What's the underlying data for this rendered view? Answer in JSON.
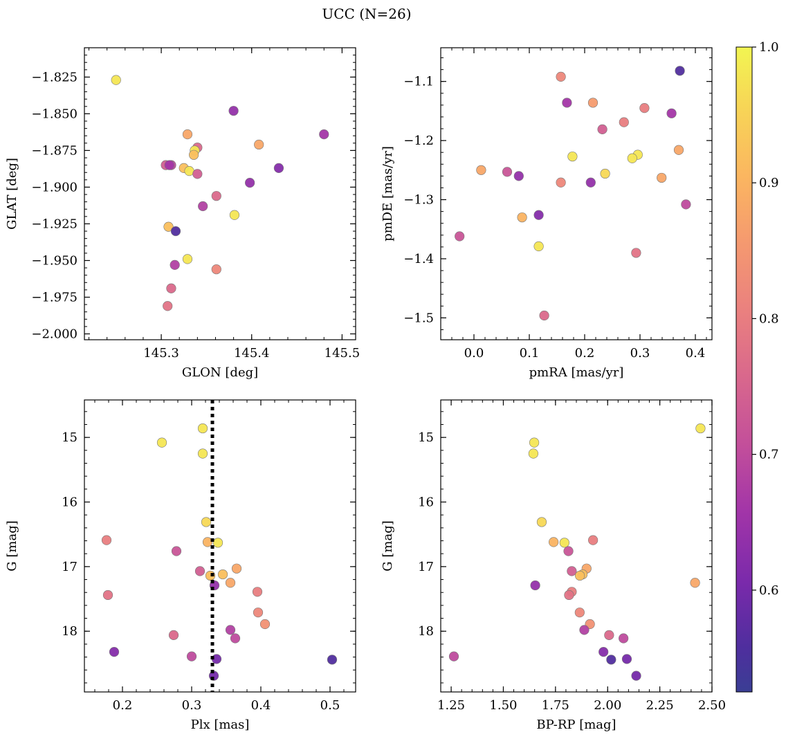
{
  "title": "UCC (N=26)",
  "colorbar": {
    "ticks": [
      0.6,
      0.7,
      0.8,
      0.9,
      1.0
    ],
    "tick_labels": [
      "0.6",
      "0.7",
      "0.8",
      "0.9",
      "1.0"
    ],
    "range": [
      0.525,
      1.0
    ],
    "colormap": "plasma"
  },
  "chart_data": [
    {
      "type": "scatter",
      "xlabel": "GLON [deg]",
      "ylabel": "GLAT [deg]",
      "xlim": [
        145.215,
        145.515
      ],
      "ylim": [
        -2.004,
        -1.805
      ],
      "xticks": [
        145.3,
        145.4,
        145.5
      ],
      "xtick_labels": [
        "145.3",
        "145.4",
        "145.5"
      ],
      "yticks": [
        -1.825,
        -1.85,
        -1.875,
        -1.9,
        -1.925,
        -1.95,
        -1.975,
        -2.0
      ],
      "ytick_labels": [
        "−1.825",
        "−1.850",
        "−1.875",
        "−1.900",
        "−1.925",
        "−1.950",
        "−1.975",
        "−2.000"
      ],
      "points": [
        {
          "x": 145.25,
          "y": -1.827,
          "c": 0.98
        },
        {
          "x": 145.38,
          "y": -1.848,
          "c": 0.64
        },
        {
          "x": 145.48,
          "y": -1.864,
          "c": 0.66
        },
        {
          "x": 145.329,
          "y": -1.864,
          "c": 0.88
        },
        {
          "x": 145.408,
          "y": -1.871,
          "c": 0.88
        },
        {
          "x": 145.34,
          "y": -1.873,
          "c": 0.76
        },
        {
          "x": 145.337,
          "y": -1.875,
          "c": 0.98
        },
        {
          "x": 145.336,
          "y": -1.878,
          "c": 0.92
        },
        {
          "x": 145.305,
          "y": -1.885,
          "c": 0.74
        },
        {
          "x": 145.311,
          "y": -1.885,
          "c": 0.7
        },
        {
          "x": 145.309,
          "y": -1.885,
          "c": 0.66
        },
        {
          "x": 145.325,
          "y": -1.887,
          "c": 0.92
        },
        {
          "x": 145.43,
          "y": -1.887,
          "c": 0.62
        },
        {
          "x": 145.331,
          "y": -1.889,
          "c": 0.98
        },
        {
          "x": 145.34,
          "y": -1.891,
          "c": 0.74
        },
        {
          "x": 145.398,
          "y": -1.897,
          "c": 0.64
        },
        {
          "x": 145.361,
          "y": -1.906,
          "c": 0.76
        },
        {
          "x": 145.346,
          "y": -1.913,
          "c": 0.68
        },
        {
          "x": 145.381,
          "y": -1.919,
          "c": 0.98
        },
        {
          "x": 145.308,
          "y": -1.927,
          "c": 0.92
        },
        {
          "x": 145.316,
          "y": -1.93,
          "c": 0.56
        },
        {
          "x": 145.329,
          "y": -1.949,
          "c": 0.98
        },
        {
          "x": 145.315,
          "y": -1.953,
          "c": 0.68
        },
        {
          "x": 145.361,
          "y": -1.956,
          "c": 0.82
        },
        {
          "x": 145.311,
          "y": -1.969,
          "c": 0.76
        },
        {
          "x": 145.307,
          "y": -1.981,
          "c": 0.78
        }
      ]
    },
    {
      "type": "scatter",
      "xlabel": "pmRA [mas/yr]",
      "ylabel": "pmDE [mas/yr]",
      "xlim": [
        -0.06,
        0.43
      ],
      "ylim": [
        -1.537,
        -1.043
      ],
      "xticks": [
        0.0,
        0.1,
        0.2,
        0.3,
        0.4
      ],
      "xtick_labels": [
        "0.0",
        "0.1",
        "0.2",
        "0.3",
        "0.4"
      ],
      "yticks": [
        -1.1,
        -1.2,
        -1.3,
        -1.4,
        -1.5
      ],
      "ytick_labels": [
        "−1.1",
        "−1.2",
        "−1.3",
        "−1.4",
        "−1.5"
      ],
      "points": [
        {
          "x": 0.372,
          "y": -1.082,
          "c": 0.56
        },
        {
          "x": 0.157,
          "y": -1.092,
          "c": 0.82
        },
        {
          "x": 0.168,
          "y": -1.136,
          "c": 0.66
        },
        {
          "x": 0.215,
          "y": -1.136,
          "c": 0.86
        },
        {
          "x": 0.308,
          "y": -1.145,
          "c": 0.8
        },
        {
          "x": 0.357,
          "y": -1.154,
          "c": 0.66
        },
        {
          "x": 0.271,
          "y": -1.169,
          "c": 0.8
        },
        {
          "x": 0.232,
          "y": -1.181,
          "c": 0.74
        },
        {
          "x": 0.37,
          "y": -1.216,
          "c": 0.88
        },
        {
          "x": 0.296,
          "y": -1.224,
          "c": 0.98
        },
        {
          "x": 0.178,
          "y": -1.227,
          "c": 0.98
        },
        {
          "x": 0.286,
          "y": -1.23,
          "c": 0.98
        },
        {
          "x": 0.013,
          "y": -1.25,
          "c": 0.88
        },
        {
          "x": 0.06,
          "y": -1.253,
          "c": 0.72
        },
        {
          "x": 0.237,
          "y": -1.256,
          "c": 0.96
        },
        {
          "x": 0.081,
          "y": -1.26,
          "c": 0.64
        },
        {
          "x": 0.339,
          "y": -1.263,
          "c": 0.88
        },
        {
          "x": 0.157,
          "y": -1.271,
          "c": 0.82
        },
        {
          "x": 0.211,
          "y": -1.271,
          "c": 0.64
        },
        {
          "x": 0.383,
          "y": -1.308,
          "c": 0.7
        },
        {
          "x": 0.117,
          "y": -1.326,
          "c": 0.62
        },
        {
          "x": 0.087,
          "y": -1.33,
          "c": 0.9
        },
        {
          "x": -0.026,
          "y": -1.362,
          "c": 0.72
        },
        {
          "x": 0.117,
          "y": -1.379,
          "c": 0.98
        },
        {
          "x": 0.293,
          "y": -1.39,
          "c": 0.78
        },
        {
          "x": 0.127,
          "y": -1.496,
          "c": 0.76
        }
      ]
    },
    {
      "type": "scatter",
      "xlabel": "Plx [mas]",
      "ylabel": "G [mag]",
      "xlim": [
        0.145,
        0.537
      ],
      "ylim": [
        18.94,
        14.42
      ],
      "vline": 0.33,
      "xticks": [
        0.2,
        0.3,
        0.4,
        0.5
      ],
      "xtick_labels": [
        "0.2",
        "0.3",
        "0.4",
        "0.5"
      ],
      "yticks": [
        15,
        16,
        17,
        18
      ],
      "ytick_labels": [
        "15",
        "16",
        "17",
        "18"
      ],
      "points": [
        {
          "x": 0.316,
          "y": 14.86,
          "c": 0.98
        },
        {
          "x": 0.257,
          "y": 15.08,
          "c": 0.98
        },
        {
          "x": 0.316,
          "y": 15.25,
          "c": 0.98
        },
        {
          "x": 0.321,
          "y": 16.31,
          "c": 0.96
        },
        {
          "x": 0.177,
          "y": 16.59,
          "c": 0.8
        },
        {
          "x": 0.323,
          "y": 16.62,
          "c": 0.9
        },
        {
          "x": 0.338,
          "y": 16.63,
          "c": 0.98
        },
        {
          "x": 0.278,
          "y": 16.76,
          "c": 0.72
        },
        {
          "x": 0.365,
          "y": 17.03,
          "c": 0.88
        },
        {
          "x": 0.312,
          "y": 17.07,
          "c": 0.74
        },
        {
          "x": 0.345,
          "y": 17.12,
          "c": 0.92
        },
        {
          "x": 0.327,
          "y": 17.14,
          "c": 0.92
        },
        {
          "x": 0.356,
          "y": 17.25,
          "c": 0.88
        },
        {
          "x": 0.333,
          "y": 17.29,
          "c": 0.64
        },
        {
          "x": 0.395,
          "y": 17.39,
          "c": 0.8
        },
        {
          "x": 0.179,
          "y": 17.44,
          "c": 0.78
        },
        {
          "x": 0.396,
          "y": 17.71,
          "c": 0.82
        },
        {
          "x": 0.406,
          "y": 17.89,
          "c": 0.84
        },
        {
          "x": 0.356,
          "y": 17.98,
          "c": 0.68
        },
        {
          "x": 0.274,
          "y": 18.06,
          "c": 0.76
        },
        {
          "x": 0.363,
          "y": 18.11,
          "c": 0.7
        },
        {
          "x": 0.188,
          "y": 18.32,
          "c": 0.62
        },
        {
          "x": 0.3,
          "y": 18.39,
          "c": 0.7
        },
        {
          "x": 0.336,
          "y": 18.43,
          "c": 0.6
        },
        {
          "x": 0.503,
          "y": 18.44,
          "c": 0.56
        },
        {
          "x": 0.332,
          "y": 18.69,
          "c": 0.6
        }
      ]
    },
    {
      "type": "scatter",
      "xlabel": "BP-RP [mag]",
      "ylabel": "G [mag]",
      "xlim": [
        1.2,
        2.5
      ],
      "ylim": [
        18.94,
        14.42
      ],
      "xticks": [
        1.25,
        1.5,
        1.75,
        2.0,
        2.25,
        2.5
      ],
      "xtick_labels": [
        "1.25",
        "1.50",
        "1.75",
        "2.00",
        "2.25",
        "2.50"
      ],
      "yticks": [
        15,
        16,
        17,
        18
      ],
      "ytick_labels": [
        "15",
        "16",
        "17",
        "18"
      ],
      "points": [
        {
          "x": 2.445,
          "y": 14.86,
          "c": 0.98
        },
        {
          "x": 1.648,
          "y": 15.08,
          "c": 0.98
        },
        {
          "x": 1.644,
          "y": 15.25,
          "c": 0.98
        },
        {
          "x": 1.684,
          "y": 16.31,
          "c": 0.96
        },
        {
          "x": 1.93,
          "y": 16.59,
          "c": 0.8
        },
        {
          "x": 1.741,
          "y": 16.62,
          "c": 0.9
        },
        {
          "x": 1.793,
          "y": 16.63,
          "c": 0.98
        },
        {
          "x": 1.812,
          "y": 16.76,
          "c": 0.72
        },
        {
          "x": 1.899,
          "y": 17.03,
          "c": 0.88
        },
        {
          "x": 1.828,
          "y": 17.07,
          "c": 0.74
        },
        {
          "x": 1.88,
          "y": 17.12,
          "c": 0.92
        },
        {
          "x": 1.867,
          "y": 17.14,
          "c": 0.92
        },
        {
          "x": 2.419,
          "y": 17.25,
          "c": 0.88
        },
        {
          "x": 1.653,
          "y": 17.29,
          "c": 0.64
        },
        {
          "x": 1.828,
          "y": 17.39,
          "c": 0.8
        },
        {
          "x": 1.815,
          "y": 17.44,
          "c": 0.78
        },
        {
          "x": 1.866,
          "y": 17.71,
          "c": 0.82
        },
        {
          "x": 1.915,
          "y": 17.89,
          "c": 0.84
        },
        {
          "x": 1.888,
          "y": 17.98,
          "c": 0.68
        },
        {
          "x": 2.007,
          "y": 18.06,
          "c": 0.76
        },
        {
          "x": 2.076,
          "y": 18.11,
          "c": 0.7
        },
        {
          "x": 1.98,
          "y": 18.32,
          "c": 0.62
        },
        {
          "x": 1.263,
          "y": 18.39,
          "c": 0.7
        },
        {
          "x": 2.092,
          "y": 18.43,
          "c": 0.6
        },
        {
          "x": 2.017,
          "y": 18.44,
          "c": 0.56
        },
        {
          "x": 2.137,
          "y": 18.69,
          "c": 0.6
        }
      ]
    }
  ]
}
